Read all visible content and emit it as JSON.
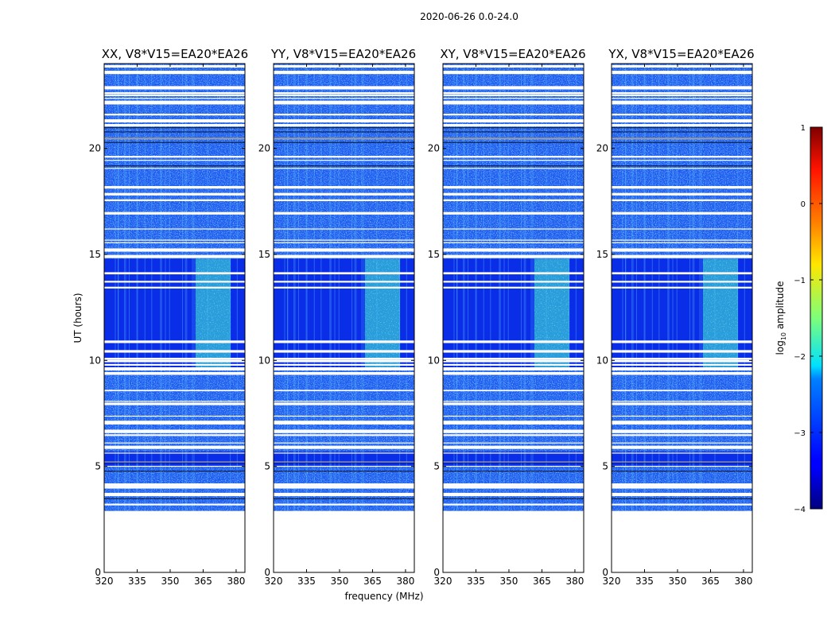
{
  "suptitle": "2020-06-26 0.0-24.0",
  "chart_data": {
    "type": "heatmap",
    "panels": [
      {
        "title": "XX, V8*V15=EA20*EA26",
        "id": "xx"
      },
      {
        "title": "YY, V8*V15=EA20*EA26",
        "id": "yy"
      },
      {
        "title": "XY, V8*V15=EA20*EA26",
        "id": "xy"
      },
      {
        "title": "YX, V8*V15=EA20*EA26",
        "id": "yx"
      }
    ],
    "xlabel": "frequency (MHz)",
    "ylabel": "UT (hours)",
    "xlim": [
      320,
      384
    ],
    "ylim": [
      0,
      24
    ],
    "xticks": [
      320,
      335,
      350,
      365,
      380
    ],
    "yticks": [
      0,
      5,
      10,
      15,
      20
    ],
    "data_time_range_hours": [
      2.9,
      24.0
    ],
    "bright_band_mhz": [
      361.5,
      377.5
    ],
    "bright_band_hours": [
      9.6,
      14.8
    ],
    "colorbar": {
      "label": "log10 amplitude",
      "label_main": "log",
      "label_sub": "10",
      "label_rest": " amplitude",
      "range": [
        -4,
        1
      ],
      "ticks": [
        1,
        0,
        -1,
        -2,
        -3,
        -4
      ],
      "tick_labels": [
        "1",
        "0",
        "−1",
        "−2",
        "−3",
        "−4"
      ],
      "colormap": "jet"
    }
  }
}
